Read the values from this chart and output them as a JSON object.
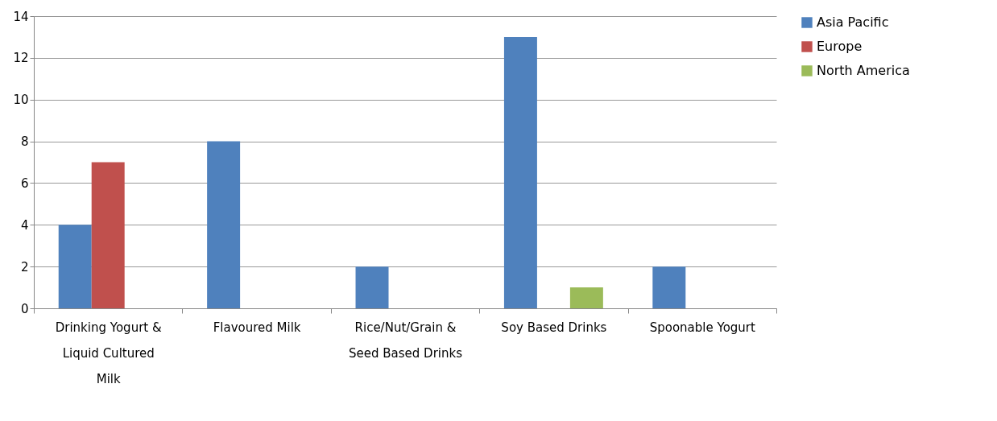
{
  "chart_data": {
    "type": "bar",
    "categories": [
      "Drinking Yogurt & Liquid Cultured Milk",
      "Flavoured Milk",
      "Rice/Nut/Grain & Seed Based Drinks",
      "Soy Based Drinks",
      "Spoonable Yogurt"
    ],
    "series": [
      {
        "name": "Asia Pacific",
        "color": "#4f81bd",
        "values": [
          4,
          8,
          2,
          13,
          2
        ]
      },
      {
        "name": "Europe",
        "color": "#c0504d",
        "values": [
          7,
          0,
          0,
          0,
          0
        ]
      },
      {
        "name": "North America",
        "color": "#9bbb59",
        "values": [
          0,
          0,
          0,
          1,
          0
        ]
      }
    ],
    "ylim": [
      0,
      14
    ],
    "yticks": [
      0,
      2,
      4,
      6,
      8,
      10,
      12,
      14
    ],
    "grid": "y",
    "legend": "right"
  }
}
